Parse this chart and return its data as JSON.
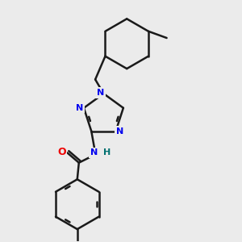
{
  "background_color": "#ebebeb",
  "bond_color": "#1a1a1a",
  "bond_width": 1.8,
  "atom_colors": {
    "N": "#0000ee",
    "O": "#ee0000",
    "H": "#007070",
    "C": "#1a1a1a"
  },
  "figsize": [
    3.0,
    3.0
  ],
  "dpi": 100
}
